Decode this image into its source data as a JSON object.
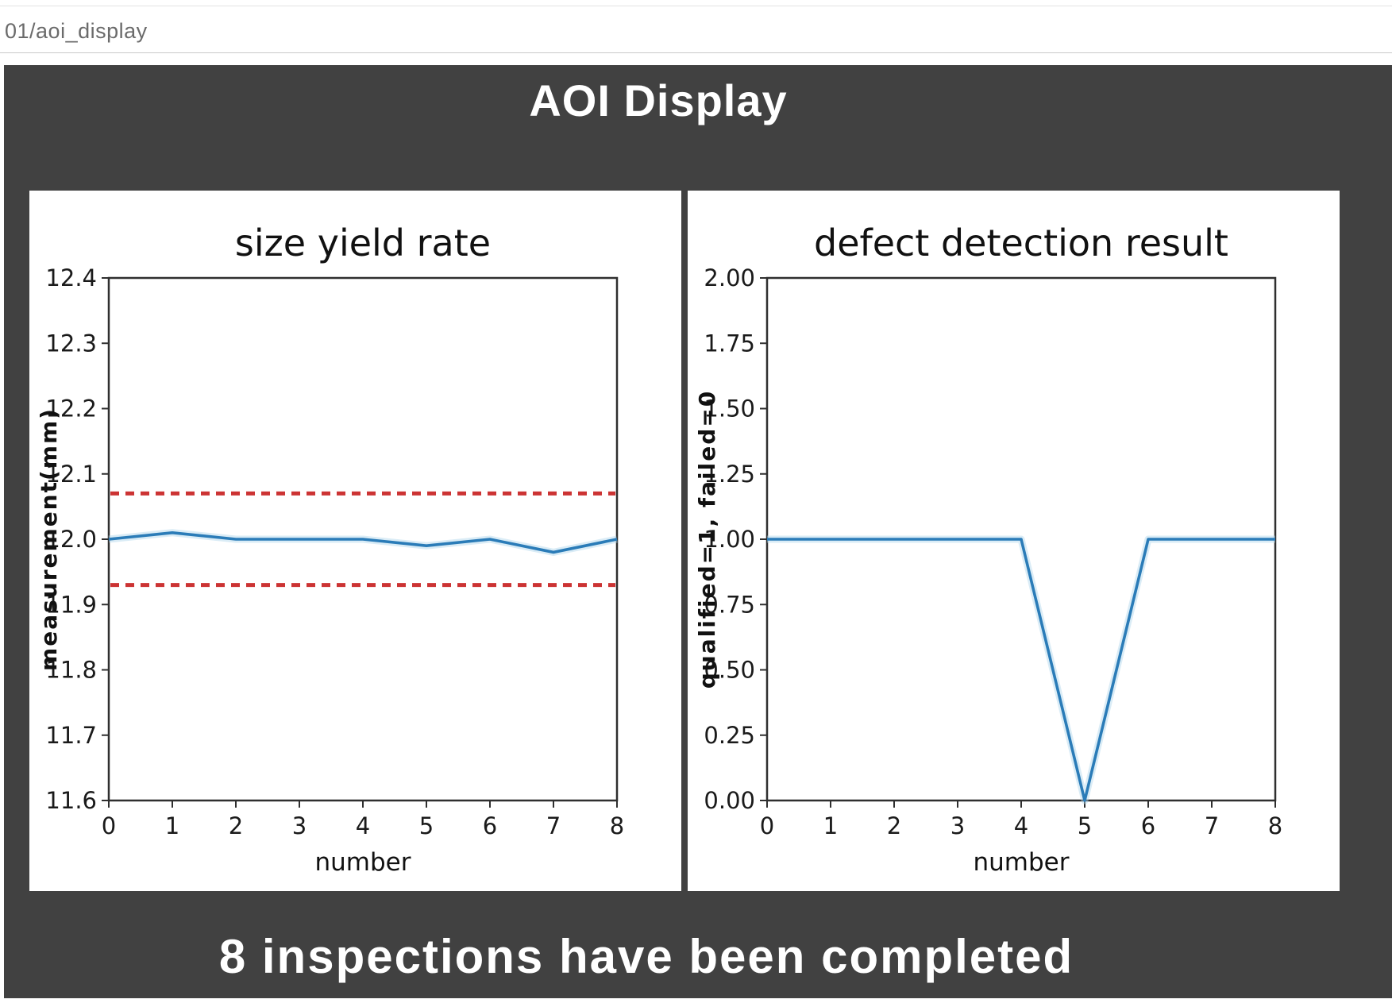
{
  "browser": {
    "path_label": "01/aoi_display"
  },
  "app": {
    "title": "AOI Display",
    "status_message": "8 inspections have been completed"
  },
  "colors": {
    "panel_bg": "#414141",
    "card_bg": "#ffffff",
    "axis": "#2f2f2f",
    "tick_text": "#1a1a1a",
    "line_blue": "#2b7cb8",
    "line_halo": "#aed4ea",
    "limit_red": "#cc3333",
    "topbar_text": "#6b6b6b"
  },
  "chart_data": [
    {
      "type": "line",
      "title": "size yield rate",
      "xlabel": "number",
      "ylabel": "measurement(mm)",
      "x": [
        0,
        1,
        2,
        3,
        4,
        5,
        6,
        7,
        8
      ],
      "series": [
        {
          "name": "measurement",
          "values": [
            12.0,
            12.01,
            12.0,
            12.0,
            12.0,
            11.99,
            12.0,
            11.98,
            12.0
          ]
        }
      ],
      "xlim": [
        0,
        8
      ],
      "ylim": [
        11.6,
        12.4
      ],
      "xtick_values": [
        0,
        1,
        2,
        3,
        4,
        5,
        6,
        7,
        8
      ],
      "xtick_labels": [
        "0",
        "1",
        "2",
        "3",
        "4",
        "5",
        "6",
        "7",
        "8"
      ],
      "ytick_values": [
        11.6,
        11.7,
        11.8,
        11.9,
        12.0,
        12.1,
        12.2,
        12.3,
        12.4
      ],
      "ytick_labels": [
        "11.6",
        "11.7",
        "11.8",
        "11.9",
        "12.0",
        "12.1",
        "12.2",
        "12.3",
        "12.4"
      ],
      "limit_lines": [
        {
          "y": 12.07,
          "color": "#cc3333",
          "style": "dashed"
        },
        {
          "y": 11.93,
          "color": "#cc3333",
          "style": "dashed"
        }
      ],
      "grid": false,
      "legend": "none"
    },
    {
      "type": "line",
      "title": "defect detection result",
      "xlabel": "number",
      "ylabel": "qualified=1, failed=0",
      "x": [
        0,
        1,
        2,
        3,
        4,
        5,
        6,
        7,
        8
      ],
      "series": [
        {
          "name": "result",
          "values": [
            1,
            1,
            1,
            1,
            1,
            0,
            1,
            1,
            1
          ]
        }
      ],
      "xlim": [
        0,
        8
      ],
      "ylim": [
        0,
        2
      ],
      "xtick_values": [
        0,
        1,
        2,
        3,
        4,
        5,
        6,
        7,
        8
      ],
      "xtick_labels": [
        "0",
        "1",
        "2",
        "3",
        "4",
        "5",
        "6",
        "7",
        "8"
      ],
      "ytick_values": [
        0,
        0.25,
        0.5,
        0.75,
        1.0,
        1.25,
        1.5,
        1.75,
        2.0
      ],
      "ytick_labels": [
        "0.00",
        "0.25",
        "0.50",
        "0.75",
        "1.00",
        "1.25",
        "1.50",
        "1.75",
        "2.00"
      ],
      "limit_lines": [],
      "grid": false,
      "legend": "none"
    }
  ]
}
